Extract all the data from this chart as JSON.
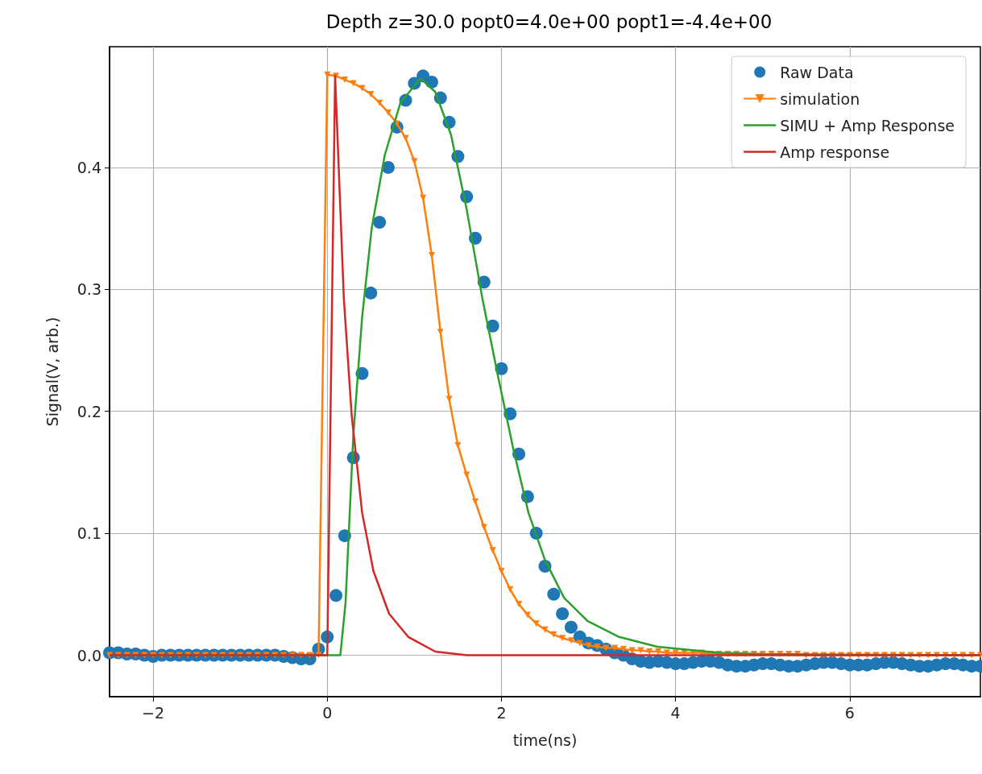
{
  "chart_data": {
    "type": "line",
    "title": "Depth z=30.0 popt0=4.0e+00 popt1=-4.4e+00",
    "xlabel": "time(ns)",
    "ylabel": "Signal(V, arb.)",
    "xlim": [
      -2.5,
      7.5
    ],
    "ylim": [
      -0.034,
      0.499
    ],
    "xticks": [
      {
        "value": -2,
        "label": "−2"
      },
      0,
      2,
      4,
      6
    ],
    "yticks": [
      {
        "value": 0,
        "label": "0.0"
      },
      0.1,
      0.2,
      0.3,
      0.4
    ],
    "grid": true,
    "legend": "top right",
    "x": [
      -2.5,
      -2.4,
      -2.3,
      -2.2,
      -2.1,
      -2.0,
      -1.9,
      -1.8,
      -1.7,
      -1.6,
      -1.5,
      -1.4,
      -1.3,
      -1.2,
      -1.1,
      -1.0,
      -0.9,
      -0.8,
      -0.7,
      -0.6,
      -0.5,
      -0.4,
      -0.3,
      -0.2,
      -0.1,
      0.0,
      0.1,
      0.2,
      0.3,
      0.4,
      0.5,
      0.6,
      0.7,
      0.8,
      0.9,
      1.0,
      1.1,
      1.2,
      1.3,
      1.4,
      1.5,
      1.6,
      1.7,
      1.8,
      1.9,
      2.0,
      2.1,
      2.2,
      2.3,
      2.4,
      2.5,
      2.6,
      2.7,
      2.8,
      2.9,
      3.0,
      3.1,
      3.2,
      3.3,
      3.4,
      3.5,
      3.6,
      3.7,
      3.8,
      3.9,
      4.0,
      4.1,
      4.2,
      4.3,
      4.4,
      4.5,
      4.6,
      4.7,
      4.8,
      4.9,
      5.0,
      5.1,
      5.2,
      5.3,
      5.4,
      5.5,
      5.6,
      5.7,
      5.8,
      5.9,
      6.0,
      6.1,
      6.2,
      6.3,
      6.4,
      6.5,
      6.6,
      6.7,
      6.8,
      6.9,
      7.0,
      7.1,
      7.2,
      7.3,
      7.4,
      7.5
    ],
    "series": [
      {
        "name": "Raw Data",
        "type": "scatter",
        "marker": "circle",
        "color": "#1f77b4",
        "values": [
          0.002,
          0.002,
          0.001,
          0.001,
          0.0,
          -0.001,
          0,
          0,
          0,
          0,
          0,
          0,
          0,
          0,
          0,
          0,
          0,
          0,
          0,
          0,
          -0.001,
          -0.002,
          -0.003,
          -0.003,
          0.005,
          0.015,
          0.049,
          0.098,
          0.162,
          0.231,
          0.297,
          0.355,
          0.4,
          0.433,
          0.455,
          0.469,
          0.475,
          0.47,
          0.457,
          0.437,
          0.409,
          0.376,
          0.342,
          0.306,
          0.27,
          0.235,
          0.198,
          0.165,
          0.13,
          0.1,
          0.073,
          0.05,
          0.034,
          0.023,
          0.015,
          0.01,
          0.008,
          0.005,
          0.002,
          0.0,
          -0.003,
          -0.005,
          -0.006,
          -0.005,
          -0.006,
          -0.007,
          -0.007,
          -0.006,
          -0.005,
          -0.005,
          -0.006,
          -0.008,
          -0.009,
          -0.009,
          -0.008,
          -0.007,
          -0.007,
          -0.008,
          -0.009,
          -0.009,
          -0.008,
          -0.007,
          -0.006,
          -0.006,
          -0.007,
          -0.008,
          -0.008,
          -0.008,
          -0.007,
          -0.006,
          -0.006,
          -0.007,
          -0.008,
          -0.009,
          -0.009,
          -0.008,
          -0.007,
          -0.007,
          -0.008,
          -0.009,
          -0.009
        ]
      },
      {
        "name": "simulation",
        "marker": "triangle",
        "color": "#ff7f0e",
        "values": [
          0,
          0,
          0,
          0,
          0,
          0,
          0,
          0,
          0,
          0,
          0,
          0,
          0,
          0,
          0,
          0,
          0,
          0,
          0,
          0,
          0,
          0,
          0,
          0,
          0,
          0.476,
          0.475,
          0.472,
          0.469,
          0.465,
          0.46,
          0.453,
          0.445,
          0.436,
          0.424,
          0.405,
          0.375,
          0.328,
          0.265,
          0.21,
          0.172,
          0.148,
          0.126,
          0.105,
          0.086,
          0.069,
          0.054,
          0.042,
          0.033,
          0.026,
          0.021,
          0.017,
          0.014,
          0.012,
          0.01,
          0.008,
          0.007,
          0.006,
          0.006,
          0.005,
          0.004,
          0.004,
          0.003,
          0.003,
          0.002,
          0.002,
          0.002,
          0.002,
          0.002,
          0.001,
          0.001,
          0.001,
          0.001,
          0.001,
          0.001,
          0.001,
          0.001,
          0.001,
          0.001,
          0.001,
          0,
          0,
          0,
          0,
          0,
          0,
          0,
          0,
          0,
          0,
          0,
          0,
          0,
          0,
          0,
          0,
          0,
          0,
          0,
          0,
          0
        ]
      },
      {
        "name": "SIMU + Amp Response",
        "marker": "none",
        "color": "#2ca02c",
        "x": [
          -2.5,
          0.15,
          0.21,
          0.3,
          0.4,
          0.51,
          0.66,
          0.84,
          1.07,
          1.24,
          1.42,
          1.6,
          1.78,
          1.96,
          2.14,
          2.31,
          2.5,
          2.72,
          2.99,
          3.35,
          3.79,
          4.5,
          5,
          7.5
        ],
        "values": [
          0,
          0,
          0.043,
          0.181,
          0.277,
          0.35,
          0.41,
          0.453,
          0.473,
          0.462,
          0.427,
          0.366,
          0.293,
          0.229,
          0.168,
          0.117,
          0.078,
          0.047,
          0.028,
          0.015,
          0.007,
          0.002,
          0.001,
          0
        ]
      },
      {
        "name": "Amp response",
        "marker": "none",
        "color": "#d62728",
        "x": [
          -2.5,
          0,
          0.09,
          0.19,
          0.28,
          0.4,
          0.53,
          0.71,
          0.93,
          1.24,
          1.6,
          7.5
        ],
        "values": [
          0,
          0,
          0.475,
          0.293,
          0.197,
          0.117,
          0.069,
          0.034,
          0.015,
          0.003,
          0,
          0
        ]
      }
    ]
  }
}
